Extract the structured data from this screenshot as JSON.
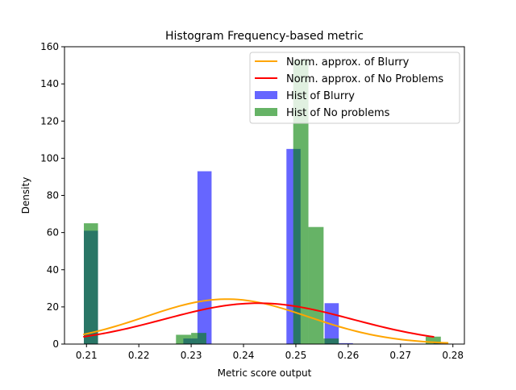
{
  "chart_data": {
    "type": "bar",
    "title": "Histogram Frequency-based metric",
    "xlabel": "Metric score output",
    "ylabel": "Density",
    "xlim": [
      0.2058,
      0.2822
    ],
    "ylim": [
      0,
      160
    ],
    "xticks": [
      0.21,
      0.22,
      0.23,
      0.24,
      0.25,
      0.26,
      0.27,
      0.28
    ],
    "xtick_labels": [
      "0.21",
      "0.22",
      "0.23",
      "0.24",
      "0.25",
      "0.26",
      "0.27",
      "0.28"
    ],
    "yticks": [
      0,
      20,
      40,
      60,
      80,
      100,
      120,
      140,
      160
    ],
    "ytick_labels": [
      "0",
      "20",
      "40",
      "60",
      "80",
      "100",
      "120",
      "140",
      "160"
    ],
    "grid": false,
    "legend_position": "top-right",
    "histograms": [
      {
        "name": "Hist of Blurry",
        "color": "#0000ff",
        "alpha": 0.6,
        "bins": [
          {
            "x0": 0.2095,
            "x1": 0.2122,
            "density": 61
          },
          {
            "x0": 0.2285,
            "x1": 0.2312,
            "density": 3
          },
          {
            "x0": 0.2312,
            "x1": 0.2339,
            "density": 93
          },
          {
            "x0": 0.2482,
            "x1": 0.2509,
            "density": 105
          },
          {
            "x0": 0.2555,
            "x1": 0.2582,
            "density": 22
          },
          {
            "x0": 0.2582,
            "x1": 0.2609,
            "density": 0.5
          },
          {
            "x0": 0.2763,
            "x1": 0.279,
            "density": 1
          }
        ]
      },
      {
        "name": "Hist of No problems",
        "color": "#008000",
        "alpha": 0.6,
        "bins": [
          {
            "x0": 0.2095,
            "x1": 0.2122,
            "density": 65
          },
          {
            "x0": 0.2271,
            "x1": 0.23,
            "density": 5
          },
          {
            "x0": 0.23,
            "x1": 0.2329,
            "density": 6
          },
          {
            "x0": 0.2495,
            "x1": 0.2524,
            "density": 153
          },
          {
            "x0": 0.2524,
            "x1": 0.2553,
            "density": 63
          },
          {
            "x0": 0.2553,
            "x1": 0.2582,
            "density": 3
          },
          {
            "x0": 0.2748,
            "x1": 0.2777,
            "density": 4
          }
        ]
      }
    ],
    "curves": [
      {
        "name": "Norm. approx. of Blurry",
        "color": "#ffa500",
        "mean": 0.2368,
        "std": 0.0156,
        "peak": 24.2,
        "x_start": 0.2095,
        "x_end": 0.279
      },
      {
        "name": "Norm. approx. of No Problems",
        "color": "#ff0000",
        "mean": 0.2428,
        "std": 0.018,
        "peak": 22.0,
        "x_start": 0.2095,
        "x_end": 0.2763
      }
    ],
    "legend": [
      {
        "label": "Norm. approx. of Blurry",
        "kind": "line",
        "color": "#ffa500"
      },
      {
        "label": "Norm. approx. of No Problems",
        "kind": "line",
        "color": "#ff0000"
      },
      {
        "label": "Hist of Blurry",
        "kind": "patch",
        "color": "#0000ff"
      },
      {
        "label": "Hist of No problems",
        "kind": "patch",
        "color": "#008000"
      }
    ]
  }
}
